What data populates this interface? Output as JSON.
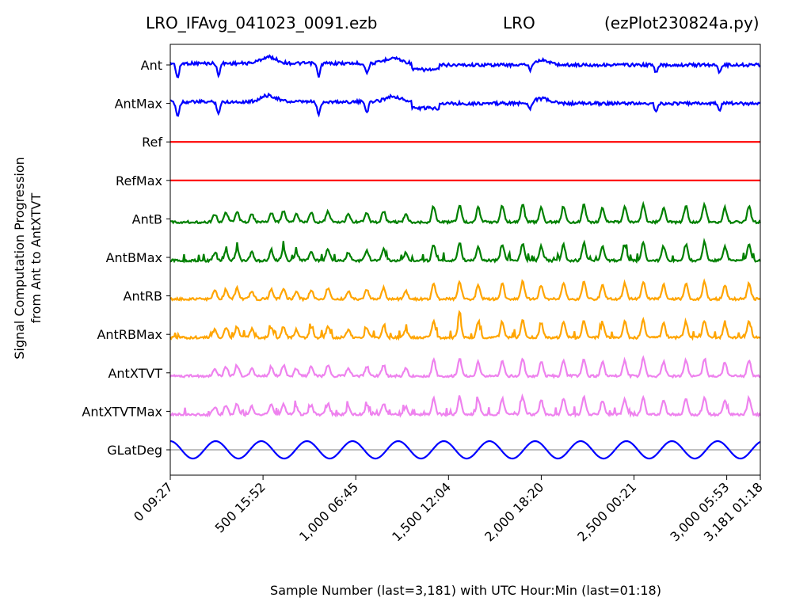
{
  "chart_data": {
    "type": "line",
    "title_left": "LRO_IFAvg_041023_0091.ezb",
    "title_center": "LRO",
    "title_right": "(ezPlot230824a.py)",
    "xlabel": "Sample Number (last=3,181) with UTC Hour:Min (last=01:18)",
    "ylabel_line1": "Signal Computation Progression",
    "ylabel_line2": "from Ant to AntXTVT",
    "xlim": [
      0,
      3181
    ],
    "x_ticks": [
      {
        "x": 0,
        "label": "0  09:27"
      },
      {
        "x": 500,
        "label": "500  15:52"
      },
      {
        "x": 1000,
        "label": "1,000  06:45"
      },
      {
        "x": 1500,
        "label": "1,500  12:04"
      },
      {
        "x": 2000,
        "label": "2,000  18:20"
      },
      {
        "x": 2500,
        "label": "2,500  00:21"
      },
      {
        "x": 3000,
        "label": "3,000  05:53"
      },
      {
        "x": 3181,
        "label": "3,181  01:18"
      }
    ],
    "series": [
      {
        "name": "Ant",
        "color": "#0000ff",
        "style": "ant"
      },
      {
        "name": "AntMax",
        "color": "#0000ff",
        "style": "ant"
      },
      {
        "name": "Ref",
        "color": "#ff0000",
        "style": "flat"
      },
      {
        "name": "RefMax",
        "color": "#ff0000",
        "style": "flat"
      },
      {
        "name": "AntB",
        "color": "#008000",
        "style": "peaks"
      },
      {
        "name": "AntBMax",
        "color": "#008000",
        "style": "peaksmax"
      },
      {
        "name": "AntRB",
        "color": "#ffa500",
        "style": "peaks"
      },
      {
        "name": "AntRBMax",
        "color": "#ffa500",
        "style": "peaksmax"
      },
      {
        "name": "AntXTVT",
        "color": "#ee82ee",
        "style": "peaks"
      },
      {
        "name": "AntXTVTMax",
        "color": "#ee82ee",
        "style": "peaksmax"
      },
      {
        "name": "GLatDeg",
        "color": "#0000ff",
        "style": "sine"
      }
    ],
    "glatdeg_zero_line_color": "#808080",
    "grid": false
  }
}
